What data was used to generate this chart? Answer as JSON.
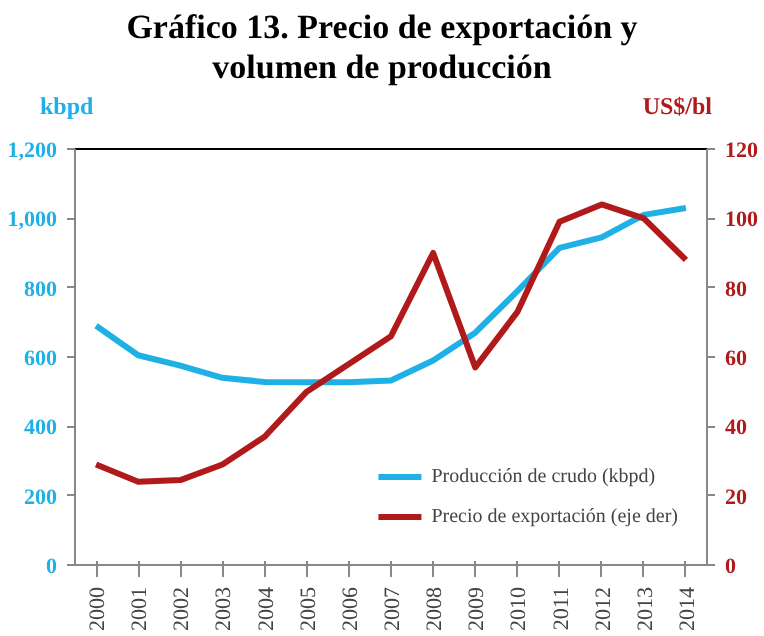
{
  "chart_data": {
    "type": "line",
    "title": "Gráfico 13. Precio de exportación y volumen de producción",
    "categories": [
      "2000",
      "2001",
      "2002",
      "2003",
      "2004",
      "2005",
      "2006",
      "2007",
      "2008",
      "2009",
      "2010",
      "2011",
      "2012",
      "2013",
      "2014"
    ],
    "series": [
      {
        "name": "Producción de crudo (kbpd)",
        "color": "#1fb0e6",
        "values": [
          690,
          605,
          575,
          540,
          528,
          527,
          527,
          532,
          590,
          670,
          790,
          915,
          945,
          1010,
          1030
        ]
      },
      {
        "name": "Precio de exportación (eje der)",
        "color": "#b01a1a",
        "axis": "y2",
        "values": [
          29,
          24,
          24.5,
          29,
          37,
          50,
          58,
          66,
          90,
          57,
          73,
          99,
          104,
          100,
          88
        ]
      }
    ],
    "ylabel": "kbpd",
    "y2label": "US$/bl",
    "ylim": [
      0,
      1200
    ],
    "yticks": [
      {
        "value": 0,
        "label": "0"
      },
      {
        "value": 200,
        "label": "200"
      },
      {
        "value": 400,
        "label": "400"
      },
      {
        "value": 600,
        "label": "600"
      },
      {
        "value": 800,
        "label": "800"
      },
      {
        "value": 1000,
        "label": "1,000"
      },
      {
        "value": 1200,
        "label": "1,200"
      }
    ],
    "y2lim": [
      0,
      120
    ],
    "y2ticks": [
      0,
      20,
      40,
      60,
      80,
      100,
      120
    ],
    "grid": false,
    "legend": "bottom right",
    "marker": "none",
    "line_style": "solid"
  }
}
